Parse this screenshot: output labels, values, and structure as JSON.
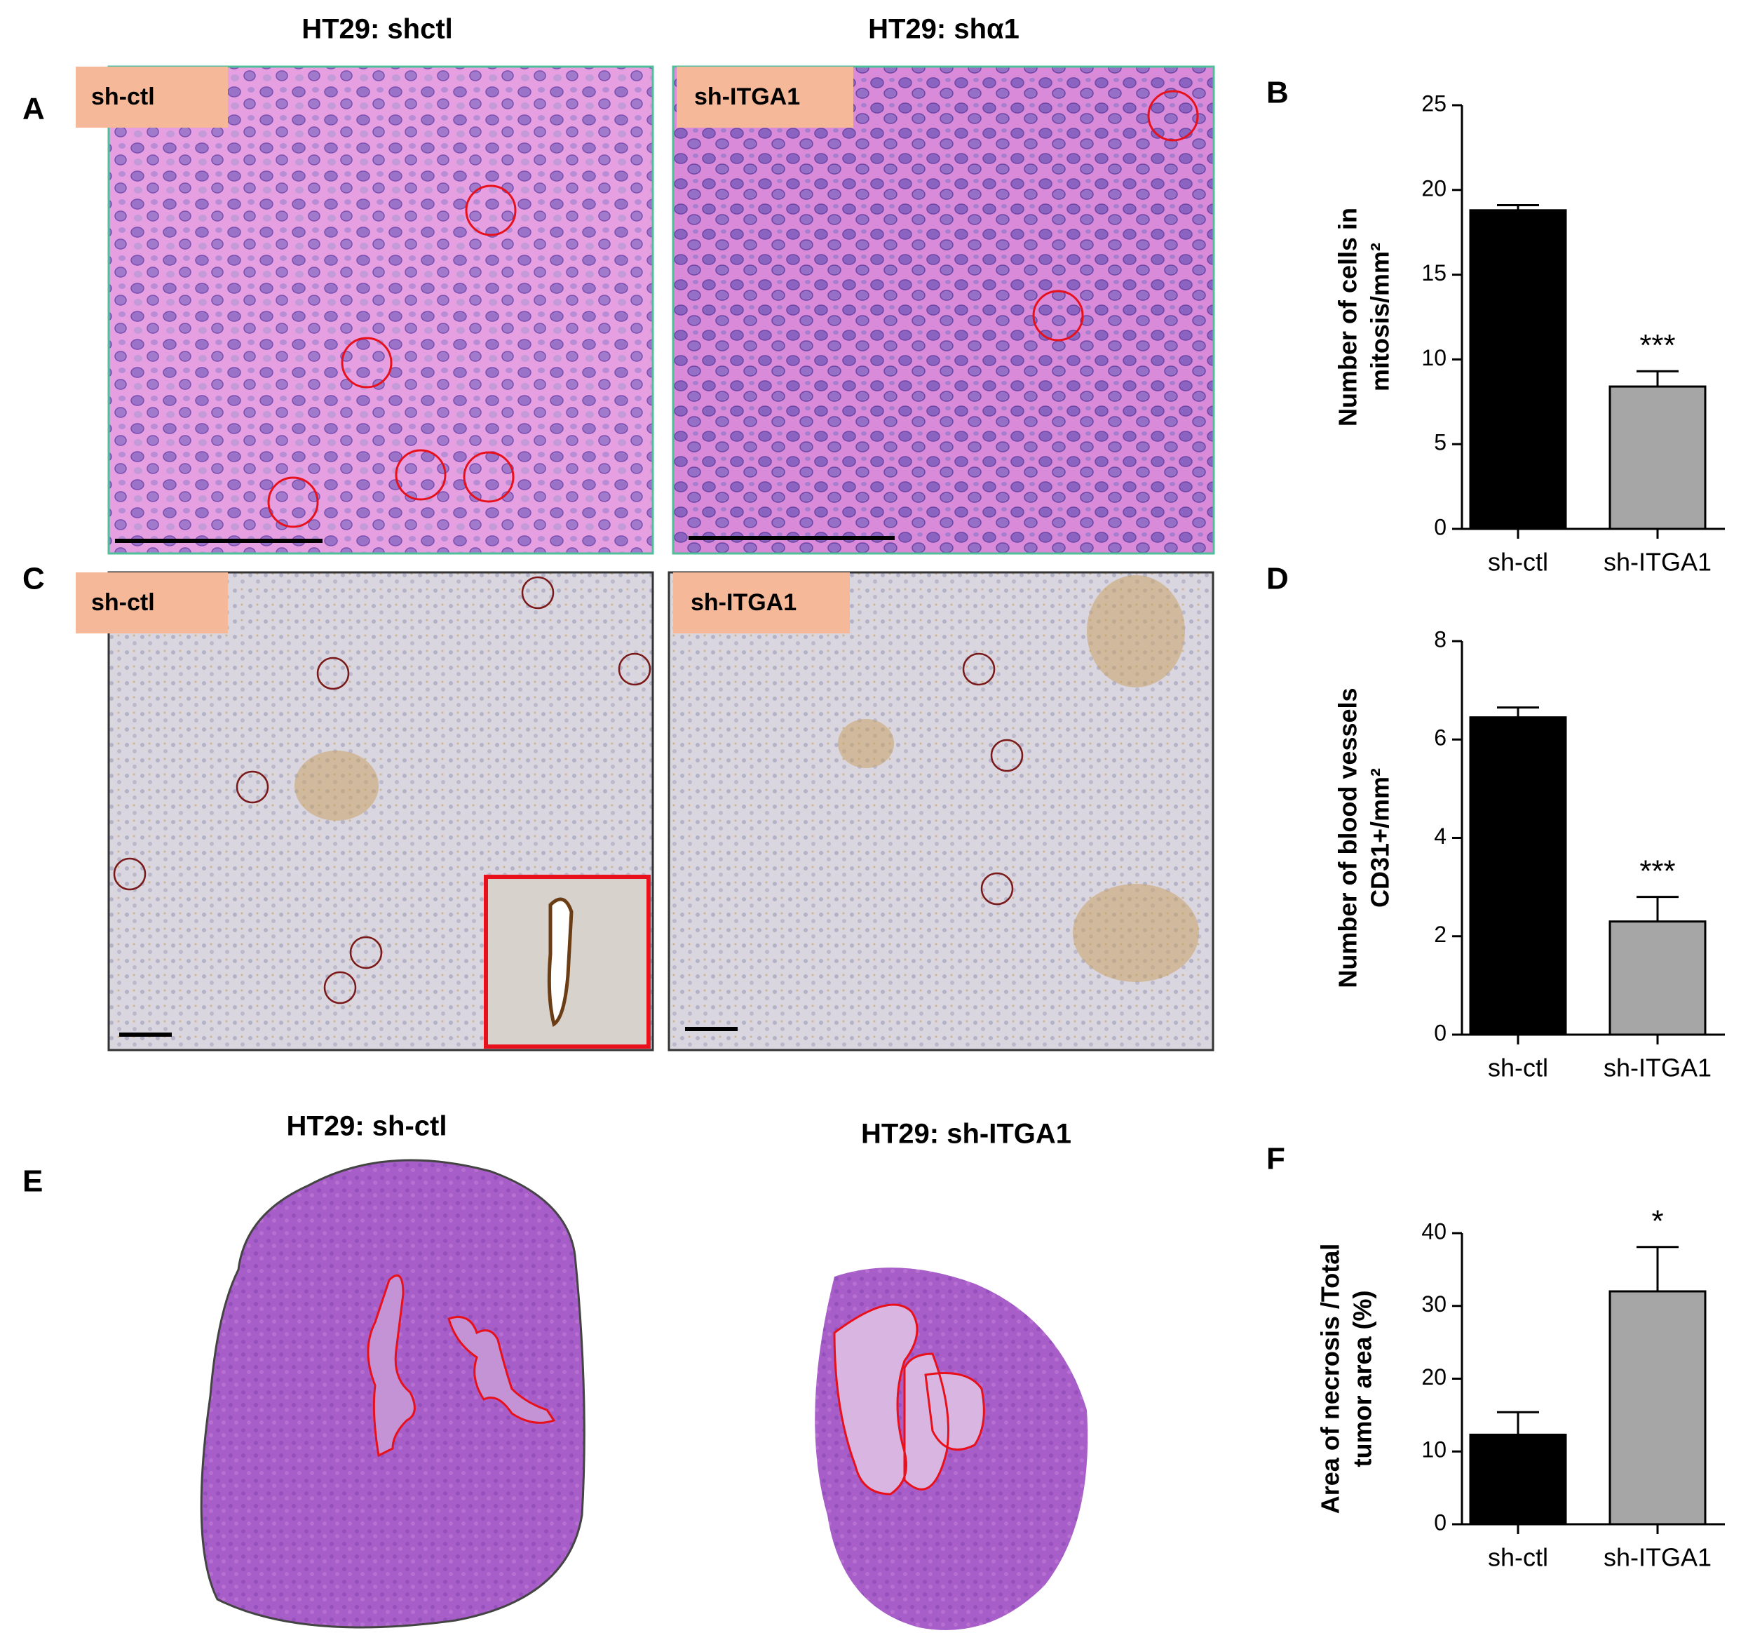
{
  "panel_labels": [
    "A",
    "B",
    "C",
    "D",
    "E",
    "F"
  ],
  "row1_titles": [
    "HT29: shctl",
    "HT29: shα1"
  ],
  "row3_titles": [
    "HT29: sh-ctl",
    "HT29: sh-ITGA1"
  ],
  "image_tags": {
    "A": [
      "sh-ctl",
      "sh-ITGA1"
    ],
    "C": [
      "sh-ctl",
      "sh-ITGA1"
    ]
  },
  "chart_data": [
    {
      "type": "bar",
      "ylabel": [
        "Number of cells in",
        "mitosis/mm²"
      ],
      "categories": [
        "sh-ctl",
        "sh-ITGA1"
      ],
      "values": [
        18.8,
        8.4
      ],
      "errors": [
        0.3,
        0.9
      ],
      "colors": [
        "#000000",
        "#a6a6a6"
      ],
      "ylim": [
        0,
        25
      ],
      "yticks": [
        0,
        5,
        10,
        15,
        20,
        25
      ],
      "annotation": "***"
    },
    {
      "type": "bar",
      "ylabel": [
        "Number of blood vessels",
        "CD31+/mm²"
      ],
      "categories": [
        "sh-ctl",
        "sh-ITGA1"
      ],
      "values": [
        6.45,
        2.3
      ],
      "errors": [
        0.2,
        0.5
      ],
      "colors": [
        "#000000",
        "#a6a6a6"
      ],
      "ylim": [
        0,
        8
      ],
      "yticks": [
        0,
        2,
        4,
        6,
        8
      ],
      "annotation": "***"
    },
    {
      "type": "bar",
      "ylabel": [
        "Area of necrosis /Total",
        "tumor area (%)"
      ],
      "categories": [
        "sh-ctl",
        "sh-ITGA1"
      ],
      "values": [
        12.3,
        32
      ],
      "errors": [
        3.1,
        6.1
      ],
      "colors": [
        "#000000",
        "#a6a6a6"
      ],
      "ylim": [
        0,
        40
      ],
      "yticks": [
        0,
        10,
        20,
        30,
        40
      ],
      "annotation": "*"
    }
  ]
}
